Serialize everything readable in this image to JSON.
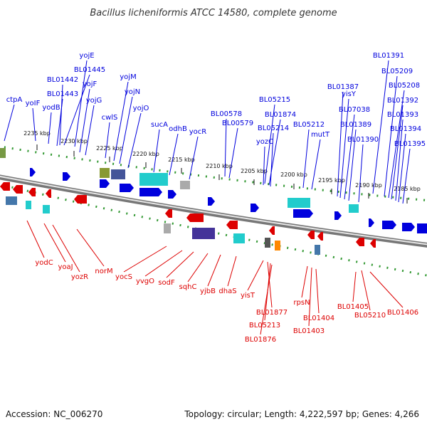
{
  "title": "Bacillus licheniformis ATCC 14580, complete genome",
  "footer": {
    "accession": "Accession: NC_006270",
    "summary": "Topology: circular; Length: 4,222,597 bp; Genes: 4,266"
  },
  "colors": {
    "forward": "#0000dd",
    "reverse": "#dd0000",
    "backbone": "#999999",
    "dots": "#339933"
  },
  "ticks": [
    "2235 kbp",
    "2230 kbp",
    "2225 kbp",
    "2220 kbp",
    "2215 kbp",
    "2210 kbp",
    "2205 kbp",
    "2200 kbp",
    "2195 kbp",
    "2190 kbp",
    "2185 kbp"
  ],
  "top_labels": [
    "ctpA",
    "yoIF",
    "yodB",
    "BL01443",
    "BL01442",
    "BL01445",
    "yojE",
    "yojF",
    "yojG",
    "cwlS",
    "yojM",
    "yojN",
    "yojO",
    "sucA",
    "odhB",
    "yocR",
    "BL00578",
    "BL00579",
    "BL05215",
    "BL01874",
    "yozC",
    "BL05214",
    "BL05212",
    "mutT",
    "BL01387",
    "yisY",
    "BL07038",
    "BL01389",
    "BL01390",
    "BL01391",
    "BL05209",
    "BL05208",
    "BL01392",
    "BL01393",
    "BL01394",
    "BL01395"
  ],
  "bottom_labels": [
    "yodC",
    "yoaJ",
    "yozR",
    "norM",
    "yocS",
    "yvgO",
    "sodF",
    "sqhC",
    "yjbB",
    "dhaS",
    "yisT",
    "BL01877",
    "BL05213",
    "BL01876",
    "rpsN",
    "BL01404",
    "BL01403",
    "BL01405",
    "BL05210",
    "BL01406"
  ]
}
